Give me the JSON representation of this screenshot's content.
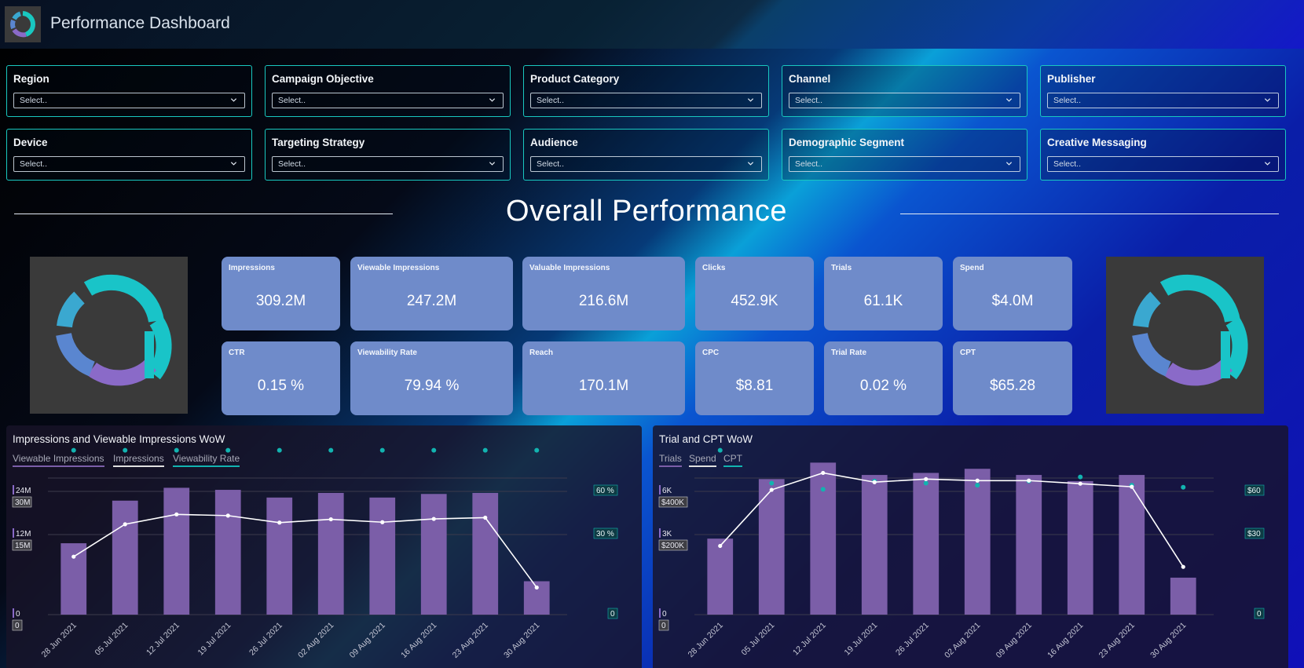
{
  "app": {
    "title": "Performance Dashboard",
    "logo_icon": "ring-logo-icon"
  },
  "filters": [
    {
      "label": "Region",
      "value": "Select.."
    },
    {
      "label": "Campaign Objective",
      "value": "Select.."
    },
    {
      "label": "Product Category",
      "value": "Select.."
    },
    {
      "label": "Channel",
      "value": "Select.."
    },
    {
      "label": "Publisher",
      "value": "Select.."
    },
    {
      "label": "Device",
      "value": "Select.."
    },
    {
      "label": "Targeting Strategy",
      "value": "Select.."
    },
    {
      "label": "Audience",
      "value": "Select.."
    },
    {
      "label": "Demographic Segment",
      "value": "Select.."
    },
    {
      "label": "Creative Messaging",
      "value": "Select.."
    }
  ],
  "section": {
    "title": "Overall Performance"
  },
  "kpis": [
    {
      "label": "Impressions",
      "value": "309.2M"
    },
    {
      "label": "Viewable Impressions",
      "value": "247.2M"
    },
    {
      "label": "Valuable Impressions",
      "value": "216.6M"
    },
    {
      "label": "Clicks",
      "value": "452.9K"
    },
    {
      "label": "Trials",
      "value": "61.1K"
    },
    {
      "label": "Spend",
      "value": "$4.0M"
    },
    {
      "label": "CTR",
      "value": "0.15 %"
    },
    {
      "label": "Viewability Rate",
      "value": "79.94 %"
    },
    {
      "label": "Reach",
      "value": "170.1M"
    },
    {
      "label": "CPC",
      "value": "$8.81"
    },
    {
      "label": "Trial Rate",
      "value": "0.02 %"
    },
    {
      "label": "CPT",
      "value": "$65.28"
    }
  ],
  "colors": {
    "bar": "#7b5ea8",
    "line": "#ffffff",
    "dot": "#12b3b0",
    "card": "#6f8bca",
    "accent": "#19c8c0"
  },
  "chart_data": [
    {
      "type": "bar",
      "title": "Impressions and Viewable Impressions WoW",
      "categories": [
        "28 Jun 2021",
        "05 Jul 2021",
        "12 Jul 2021",
        "19 Jul 2021",
        "26 Jul 2021",
        "02 Aug 2021",
        "09 Aug 2021",
        "16 Aug 2021",
        "23 Aug 2021",
        "30 Aug 2021"
      ],
      "legend": [
        "Viewable Impressions",
        "Impressions",
        "Viewability Rate"
      ],
      "axes": {
        "left_a": {
          "ticks": [
            "24M",
            "12M",
            "0"
          ],
          "values": [
            24,
            12,
            0
          ],
          "unit": "M"
        },
        "left_b": {
          "ticks": [
            "30M",
            "15M",
            "0"
          ],
          "values": [
            30,
            15,
            0
          ],
          "unit": "M"
        },
        "right": {
          "ticks": [
            "60 %",
            "30 %",
            "0"
          ],
          "values": [
            60,
            30,
            0
          ],
          "unit": "%"
        }
      },
      "series": [
        {
          "name": "Viewable Impressions",
          "kind": "bar",
          "axis": "left_a",
          "values": [
            13.9,
            22.2,
            24.7,
            24.3,
            22.8,
            23.7,
            22.8,
            23.5,
            23.7,
            6.5
          ]
        },
        {
          "name": "Impressions",
          "kind": "line",
          "axis": "left_b",
          "values": [
            14.1,
            22.0,
            24.4,
            24.1,
            22.4,
            23.2,
            22.5,
            23.3,
            23.6,
            6.6
          ]
        },
        {
          "name": "Viewability Rate",
          "kind": "scatter",
          "axis": "right",
          "values": [
            80,
            80,
            80,
            80,
            80,
            80,
            80,
            80,
            80,
            80
          ]
        }
      ]
    },
    {
      "type": "bar",
      "title": "Trial and CPT WoW",
      "categories": [
        "28 Jun 2021",
        "05 Jul 2021",
        "12 Jul 2021",
        "19 Jul 2021",
        "26 Jul 2021",
        "02 Aug 2021",
        "09 Aug 2021",
        "16 Aug 2021",
        "23 Aug 2021",
        "30 Aug 2021"
      ],
      "legend": [
        "Trials",
        "Spend",
        "CPT"
      ],
      "axes": {
        "left_a": {
          "ticks": [
            "6K",
            "3K",
            "0"
          ],
          "values": [
            6,
            3,
            0
          ],
          "unit": "K"
        },
        "left_b": {
          "ticks": [
            "$400K",
            "$200K",
            "0"
          ],
          "values": [
            400,
            200,
            0
          ],
          "unit": "$K"
        },
        "right": {
          "ticks": [
            "$60",
            "$30",
            "0"
          ],
          "values": [
            60,
            30,
            0
          ],
          "unit": "$"
        }
      },
      "series": [
        {
          "name": "Trials",
          "kind": "bar",
          "axis": "left_a",
          "values": [
            3.7,
            6.6,
            7.4,
            6.8,
            6.9,
            7.1,
            6.8,
            6.5,
            6.8,
            1.8
          ]
        },
        {
          "name": "Spend",
          "kind": "line",
          "axis": "left_b",
          "values": [
            223,
            405,
            460,
            430,
            440,
            435,
            435,
            425,
            415,
            155
          ]
        },
        {
          "name": "CPT",
          "kind": "scatter",
          "axis": "right",
          "values": [
            80,
            64,
            61,
            65,
            64,
            63,
            65,
            67,
            63,
            62
          ]
        }
      ]
    }
  ]
}
